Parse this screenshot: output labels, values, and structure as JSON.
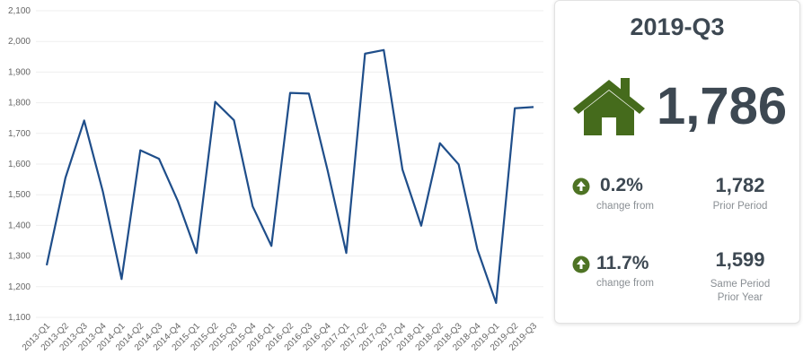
{
  "chart_data": {
    "type": "line",
    "categories": [
      "2013-Q1",
      "2013-Q2",
      "2013-Q3",
      "2013-Q4",
      "2014-Q1",
      "2014-Q2",
      "2014-Q3",
      "2014-Q4",
      "2015-Q1",
      "2015-Q2",
      "2015-Q3",
      "2015-Q4",
      "2016-Q1",
      "2016-Q2",
      "2016-Q3",
      "2016-Q4",
      "2017-Q1",
      "2017-Q2",
      "2017-Q3",
      "2017-Q4",
      "2018-Q1",
      "2018-Q2",
      "2018-Q3",
      "2018-Q4",
      "2019-Q1",
      "2019-Q2",
      "2019-Q3"
    ],
    "values": [
      1270,
      1555,
      1742,
      1510,
      1225,
      1645,
      1617,
      1480,
      1310,
      1803,
      1743,
      1462,
      1333,
      1832,
      1830,
      1580,
      1310,
      1960,
      1972,
      1582,
      1399,
      1668,
      1599,
      1322,
      1147,
      1782,
      1786
    ],
    "color": "#1f4e8a",
    "ylim": [
      1100,
      2100
    ],
    "yticks": [
      {
        "value": 1100,
        "label": "1,100"
      },
      {
        "value": 1200,
        "label": "1,200"
      },
      {
        "value": 1300,
        "label": "1,300"
      },
      {
        "value": 1400,
        "label": "1,400"
      },
      {
        "value": 1500,
        "label": "1,500"
      },
      {
        "value": 1600,
        "label": "1,600"
      },
      {
        "value": 1700,
        "label": "1,700"
      },
      {
        "value": 1800,
        "label": "1,800"
      },
      {
        "value": 1900,
        "label": "1,900"
      },
      {
        "value": 2000,
        "label": "2,000"
      },
      {
        "value": 2100,
        "label": "2,100"
      }
    ],
    "grid": true
  },
  "kpi": {
    "period": "2019-Q3",
    "value": "1,786",
    "rows": [
      {
        "change": "0.2%",
        "change_label": "change from",
        "compare": "1,782",
        "compare_label": "Prior Period"
      },
      {
        "change": "11.7%",
        "change_label": "change from",
        "compare": "1,599",
        "compare_label": "Same Period Prior Year"
      }
    ]
  }
}
